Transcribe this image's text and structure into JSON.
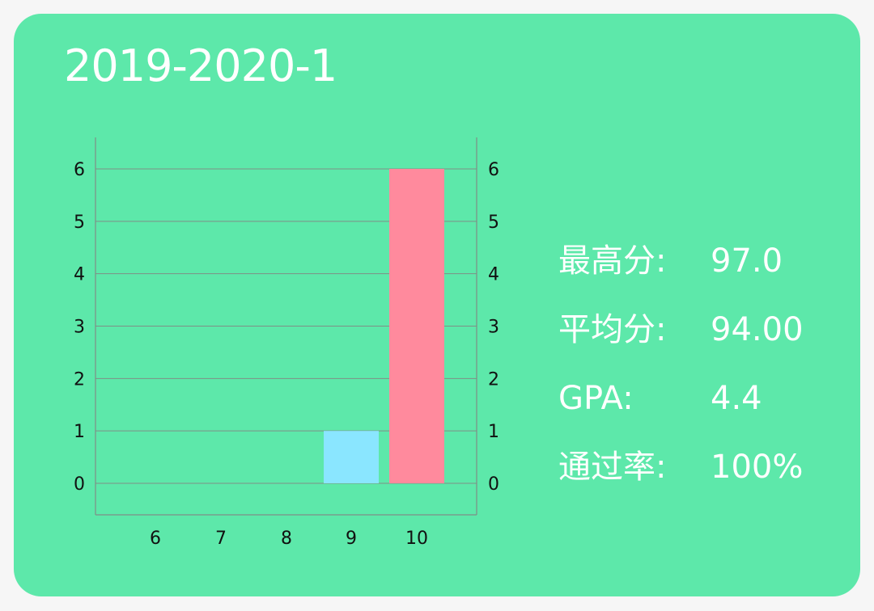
{
  "card": {
    "title": "2019-2020-1",
    "background": "#5de8aa"
  },
  "stats": [
    {
      "label": "最高分:",
      "value": "97.0"
    },
    {
      "label": "平均分:",
      "value": "94.00"
    },
    {
      "label": "GPA:",
      "value": "4.4"
    },
    {
      "label": "通过率:",
      "value": "100%"
    }
  ],
  "chart_data": {
    "type": "bar",
    "categories": [
      "6",
      "7",
      "8",
      "9",
      "10"
    ],
    "values": [
      0,
      0,
      0,
      1,
      6
    ],
    "bar_colors": [
      "#8ae6ff",
      "#8ae6ff",
      "#8ae6ff",
      "#8ae6ff",
      "#ff8a9d"
    ],
    "y_ticks": [
      "0",
      "1",
      "2",
      "3",
      "4",
      "5",
      "6"
    ],
    "ylim": [
      0,
      6
    ],
    "grid": true,
    "dual_y_axis": true,
    "title": "",
    "xlabel": "",
    "ylabel": ""
  }
}
